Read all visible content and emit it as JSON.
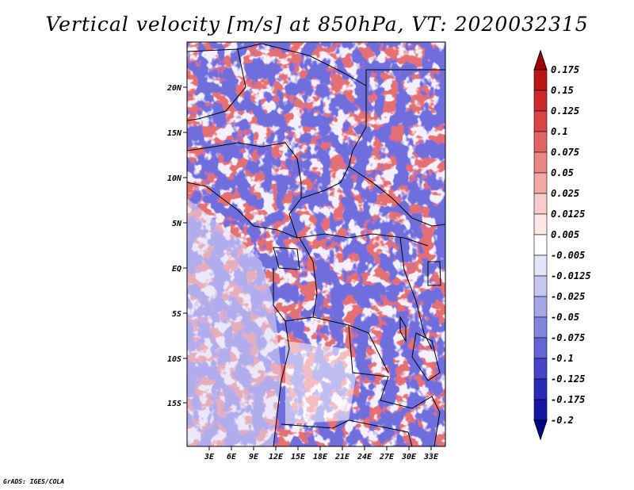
{
  "title": "Vertical velocity [m/s] at 850hPa, VT: 2020032315",
  "footer": "GrADS: IGES/COLA",
  "map": {
    "lat_labels": [
      "20N",
      "15N",
      "10N",
      "5N",
      "EQ",
      "5S",
      "10S",
      "15S"
    ],
    "lon_labels": [
      "3E",
      "6E",
      "9E",
      "12E",
      "15E",
      "18E",
      "21E",
      "24E",
      "27E",
      "30E",
      "33E"
    ]
  },
  "colorbar": {
    "labels": [
      "0.175",
      "0.15",
      "0.125",
      "0.1",
      "0.075",
      "0.05",
      "0.025",
      "0.0125",
      "0.005",
      "-0.005",
      "-0.0125",
      "-0.025",
      "-0.05",
      "-0.075",
      "-0.1",
      "-0.125",
      "-0.175",
      "-0.2"
    ],
    "colors": [
      "#a00000",
      "#b81515",
      "#cc2a2a",
      "#d94444",
      "#e36464",
      "#ec8585",
      "#f3a8a8",
      "#f9cccc",
      "#fde7e7",
      "#ffffff",
      "#e4e4fa",
      "#c6c6f2",
      "#a6a6ea",
      "#8585e0",
      "#6464d6",
      "#4444c8",
      "#2a2ab8",
      "#1515a6",
      "#00008c"
    ]
  }
}
